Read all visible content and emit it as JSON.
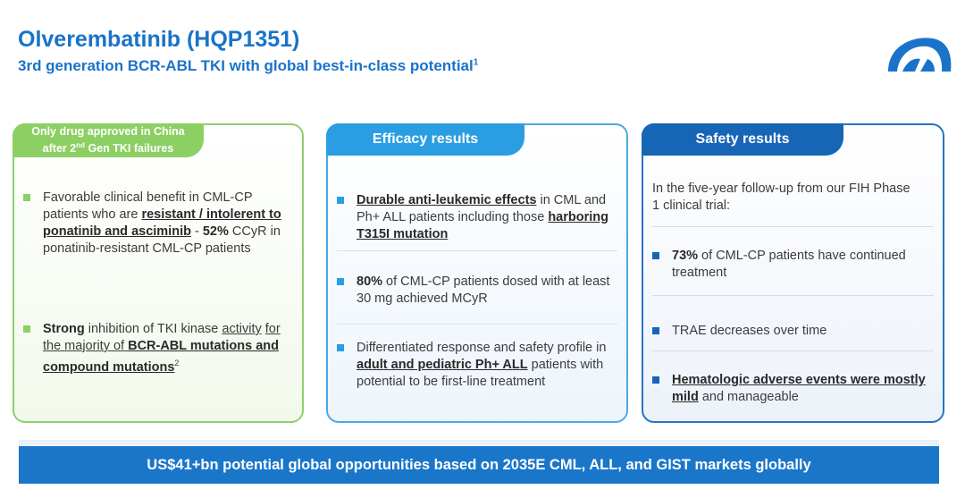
{
  "header": {
    "title": "Olverembatinib (HQP1351)",
    "subtitle": "3rd generation BCR-ABL TKI with global best-in-class potential",
    "subtitle_sup": "1"
  },
  "logo": {
    "icon": "company-logo-icon",
    "color": "#1a73c9"
  },
  "panel1": {
    "tab_line1": "Only drug approved in China",
    "tab_line2_a": "after 2",
    "tab_line2_sup": "nd",
    "tab_line2_b": " Gen TKI failures",
    "item1": {
      "t1": "Favorable clinical benefit in CML-CP patients who are ",
      "u1": "resistant / intolerent to ponatinib and asciminib",
      "t2": " - ",
      "b1": "52%",
      "t3": " CCyR in ponatinib-resistant CML-CP patients"
    },
    "item2": {
      "b1": "Strong",
      "t1": " inhibition of TKI kinase ",
      "u0": "activity",
      "u1": "for the majority of ",
      "u2": "BCR-ABL mutations and compound mutations",
      "sup": "2"
    }
  },
  "panel2": {
    "tab": "Efficacy results",
    "item1": {
      "u1": "Durable anti-leukemic effects",
      "t1": " in CML and Ph+ ALL patients including those ",
      "u2": "harboring T315I mutation"
    },
    "item2": {
      "b1": "80%",
      "t1": " of CML-CP patients dosed with at least 30 mg achieved MCyR"
    },
    "item3": {
      "t1": "Differentiated response and safety profile in ",
      "u1": "adult and pediatric Ph+ ALL",
      "t2": " patients with potential to be first-line treatment"
    }
  },
  "panel3": {
    "tab": "Safety results",
    "intro": "In the five-year follow-up from our FIH Phase 1 clinical trial:",
    "item1": {
      "b1": "73%",
      "t1": " of CML-CP patients have continued treatment"
    },
    "item2": {
      "t1": "TRAE decreases over time"
    },
    "item3": {
      "u1": "Hematologic adverse events were mostly mild",
      "t1": " and manageable"
    }
  },
  "banner": {
    "text": "US$41+bn potential global opportunities based on 2035E CML, ALL, and GIST markets globally"
  }
}
